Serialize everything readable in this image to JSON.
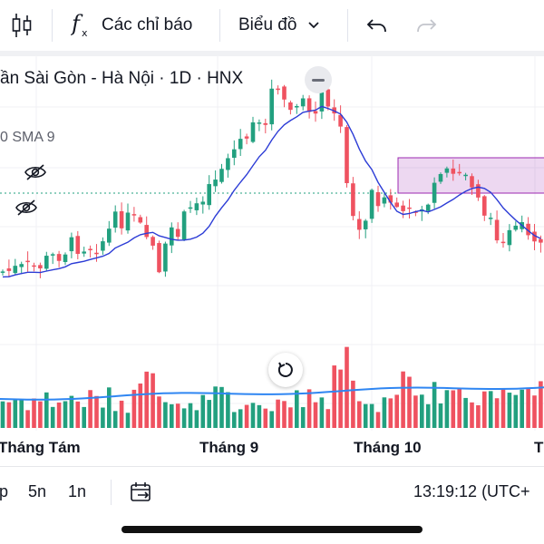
{
  "toolbar": {
    "indicators_label": "Các chỉ báo",
    "chart_type_label": "Biểu đồ"
  },
  "chart": {
    "title": "ần Sài Gòn - Hà Nội · 1D · HNX",
    "sma_label": "0 SMA 9"
  },
  "time_axis": {
    "months": [
      "Tháng Tám",
      "Tháng 9",
      "Tháng 10",
      "T"
    ]
  },
  "bottom_bar": {
    "ranges": [
      "p",
      "5n",
      "1n"
    ],
    "clock": "13:19:12 (UTC+"
  },
  "colors": {
    "up": "#22a07f",
    "down": "#ef5260",
    "sma": "#2c3cd6",
    "volume_ma": "#2f86f2",
    "highlight": "#9c27b0"
  },
  "icons": [
    "candles-icon",
    "fx-icon",
    "chevron-down-icon",
    "undo-icon",
    "redo-icon",
    "eye-off-icon",
    "reset-icon",
    "calendar-range-icon"
  ]
}
